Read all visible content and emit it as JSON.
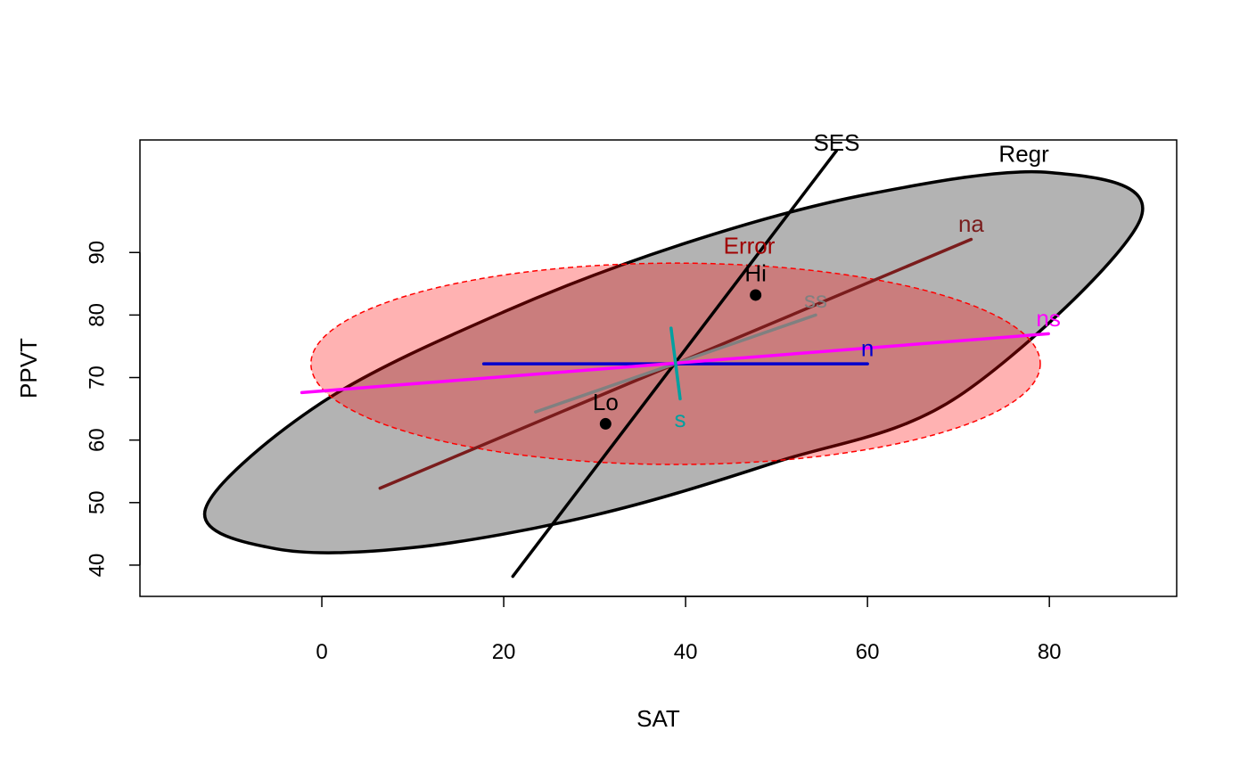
{
  "chart_data": {
    "type": "scatter",
    "xlabel": "SAT",
    "ylabel": "PPVT",
    "xlim": [
      -20,
      94
    ],
    "ylim": [
      35,
      108
    ],
    "x_ticks": [
      0,
      20,
      40,
      60,
      80
    ],
    "y_ticks": [
      40,
      50,
      60,
      70,
      80,
      90
    ],
    "x_tick_labels": [
      "0",
      "20",
      "40",
      "60",
      "80"
    ],
    "y_tick_labels": [
      "40",
      "50",
      "60",
      "70",
      "80",
      "90"
    ],
    "grid": false,
    "center": [
      38.9,
      72.2
    ],
    "ellipses": [
      {
        "name": "Regr",
        "fill": "#b3b3b3",
        "stroke": "#000000",
        "dashed": false,
        "points": [
          [
            -12.8,
            49.0
          ],
          [
            -5,
            42.6
          ],
          [
            10,
            42.8
          ],
          [
            30,
            48.0
          ],
          [
            50,
            56.5
          ],
          [
            70,
            67.0
          ],
          [
            90,
            95.3
          ],
          [
            80,
            102.8
          ],
          [
            60,
            99.3
          ],
          [
            40,
            91.5
          ],
          [
            20,
            80.5
          ],
          [
            0,
            66.0
          ]
        ]
      },
      {
        "name": "Error",
        "fill": "#ff0000",
        "fill_opacity": 0.3,
        "stroke": "#ff0000",
        "dashed": true,
        "cx": 38.9,
        "cy": 72.2,
        "rx": 40.1,
        "ry": 16.1
      }
    ],
    "hypothesis_lines": [
      {
        "name": "SES",
        "color": "#000000",
        "from": [
          21.0,
          38.2
        ],
        "to": [
          56.6,
          106.3
        ]
      },
      {
        "name": "na",
        "color": "#7a1c1c",
        "from": [
          6.4,
          52.3
        ],
        "to": [
          71.4,
          92.1
        ]
      },
      {
        "name": "ss",
        "color": "#808080",
        "from": [
          23.5,
          64.5
        ],
        "to": [
          54.3,
          80.0
        ]
      },
      {
        "name": "n",
        "color": "#0000cd",
        "from": [
          17.8,
          72.2
        ],
        "to": [
          60.0,
          72.2
        ]
      },
      {
        "name": "ns",
        "color": "#ff00ff",
        "from": [
          -2.2,
          67.6
        ],
        "to": [
          79.9,
          77.0
        ]
      },
      {
        "name": "s",
        "color": "#00a0a0",
        "from": [
          38.4,
          77.9
        ],
        "to": [
          39.4,
          66.6
        ]
      }
    ],
    "points": [
      {
        "name": "Hi",
        "x": 47.7,
        "y": 83.2
      },
      {
        "name": "Lo",
        "x": 31.2,
        "y": 62.6
      }
    ],
    "labels": [
      {
        "text": "SES",
        "x": 56.6,
        "y": 106.3,
        "color": "#000000"
      },
      {
        "text": "Regr",
        "x": 77.2,
        "y": 104.5,
        "color": "#000000"
      },
      {
        "text": "na",
        "x": 71.4,
        "y": 93.3,
        "color": "#7a1c1c"
      },
      {
        "text": "Error",
        "x": 47.0,
        "y": 89.8,
        "color": "#a00000"
      },
      {
        "text": "Hi",
        "x": 47.7,
        "y": 85.4,
        "color": "#000000"
      },
      {
        "text": "ss",
        "x": 54.3,
        "y": 81.2,
        "color": "#808080"
      },
      {
        "text": "ns",
        "x": 79.9,
        "y": 78.2,
        "color": "#ff00ff"
      },
      {
        "text": "n",
        "x": 60.0,
        "y": 73.4,
        "color": "#0000cd"
      },
      {
        "text": "Lo",
        "x": 31.2,
        "y": 64.8,
        "color": "#000000"
      },
      {
        "text": "s",
        "x": 39.4,
        "y": 62.1,
        "color": "#00a0a0"
      }
    ]
  }
}
